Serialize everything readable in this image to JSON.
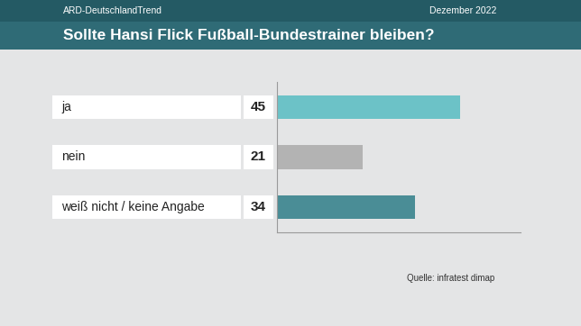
{
  "chart_data": {
    "type": "bar",
    "orientation": "horizontal",
    "header": "ARD-DeutschlandTrend",
    "date": "Dezember 2022",
    "title": "Sollte Hansi Flick Fußball-Bundestrainer bleiben?",
    "source": "Quelle: infratest dimap",
    "categories": [
      "ja",
      "nein",
      "weiß nicht / keine Angabe"
    ],
    "values": [
      45,
      21,
      34
    ],
    "colors": [
      "#6cc2c7",
      "#b3b3b3",
      "#4a8d96"
    ],
    "xlim": [
      0,
      60
    ],
    "grid": false,
    "data_labels": true,
    "tick_labels": "y"
  }
}
